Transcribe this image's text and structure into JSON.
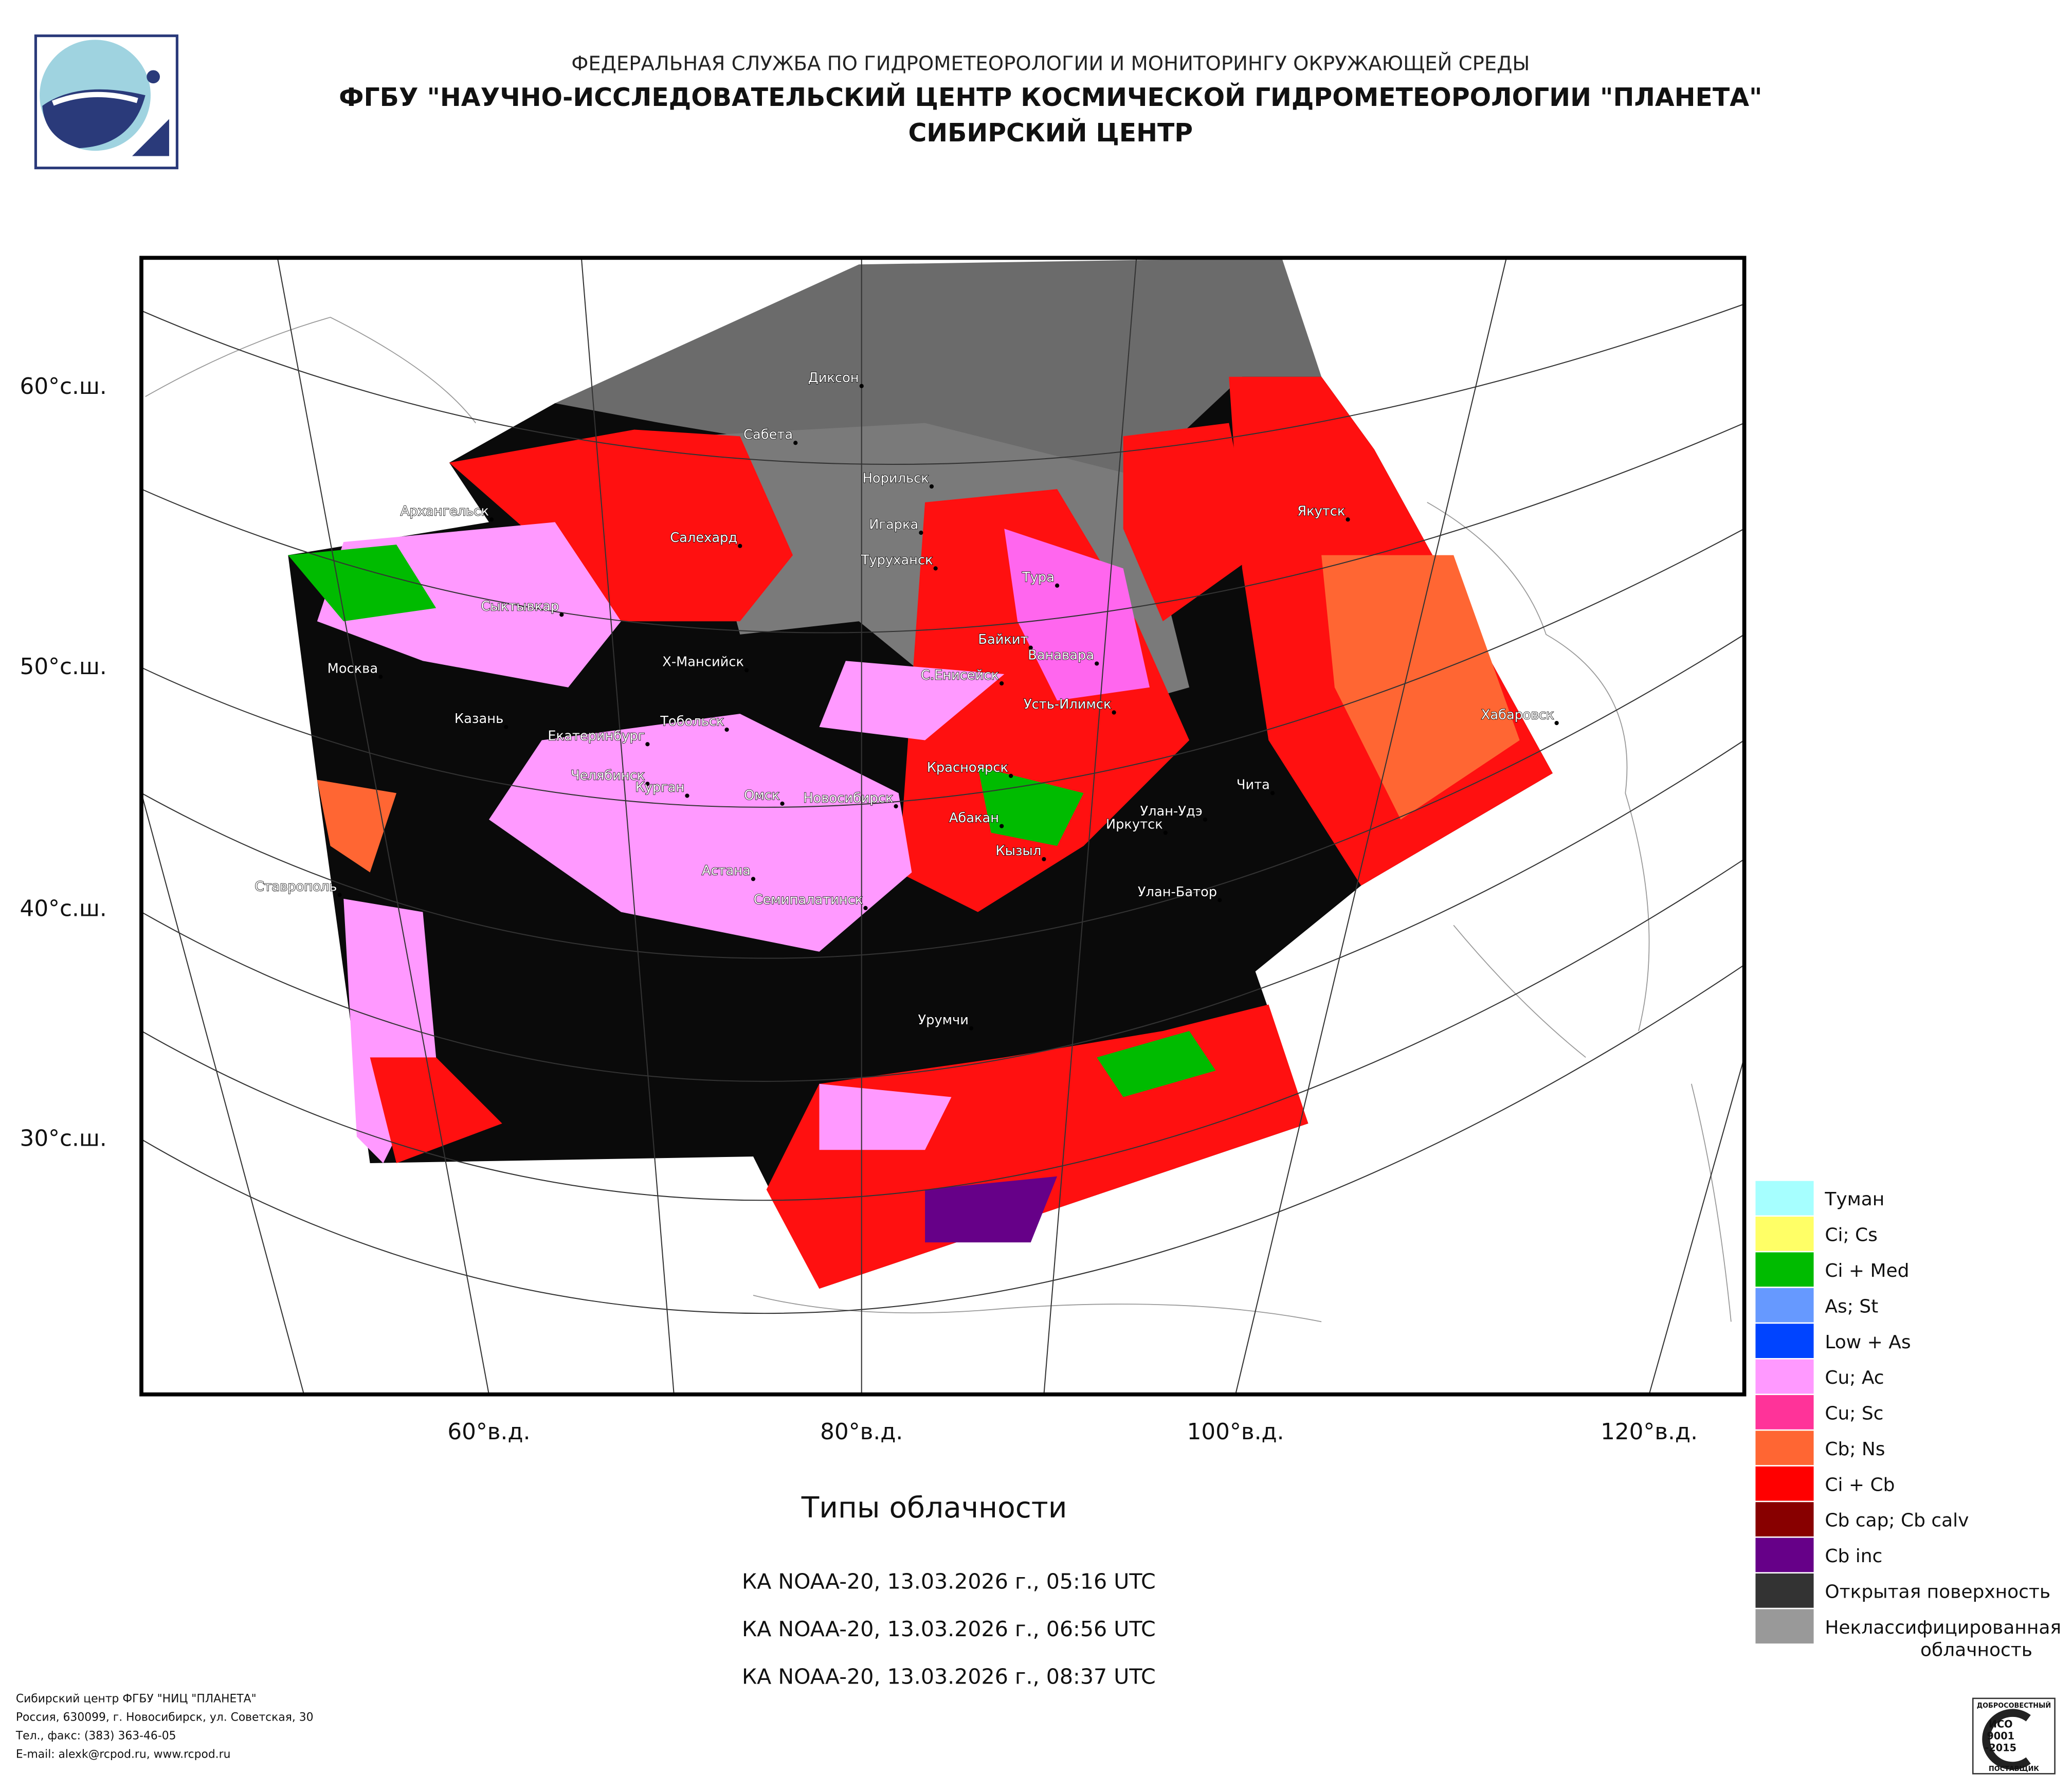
{
  "header": {
    "agency": "ФЕДЕРАЛЬНАЯ СЛУЖБА ПО ГИДРОМЕТЕОРОЛОГИИ И МОНИТОРИНГУ ОКРУЖАЮЩЕЙ СРЕДЫ",
    "institute": "ФГБУ \"НАУЧНО-ИССЛЕДОВАТЕЛЬСКИЙ ЦЕНТР КОСМИЧЕСКОЙ ГИДРОМЕТЕОРОЛОГИИ \"ПЛАНЕТА\"",
    "center": "СИБИРСКИЙ ЦЕНТР"
  },
  "map": {
    "lat_labels": [
      "60°с.ш.",
      "50°с.ш.",
      "40°с.ш.",
      "30°с.ш."
    ],
    "lon_labels": [
      "60°в.д.",
      "80°в.д.",
      "100°в.д.",
      "120°в.д."
    ],
    "cities": [
      "Диксон",
      "Сабета",
      "Норильск",
      "Архангельск",
      "Салехард",
      "Игарка",
      "Туруханск",
      "Якутск",
      "Тура",
      "Сыктывкар",
      "Байкит",
      "Ванавара",
      "Х-Мансийск",
      "С.Енисейск",
      "Москва",
      "Усть-Илимск",
      "Хабаровск",
      "Казань",
      "Тобольск",
      "Екатеринбург",
      "Красноярск",
      "Челябинск",
      "Курган",
      "Омск",
      "Чита",
      "Новосибирск",
      "Улан-Удэ",
      "Абакан",
      "Иркутск",
      "Кызыл",
      "Астана",
      "Ставрополь",
      "Семипалатинск",
      "Улан-Батор",
      "Урумчи"
    ]
  },
  "legend": [
    {
      "lines": [
        "Туман"
      ],
      "color": "#a6ffff"
    },
    {
      "lines": [
        "Ci; Cs"
      ],
      "color": "#ffff66"
    },
    {
      "lines": [
        "Ci + Med"
      ],
      "color": "#00bb00"
    },
    {
      "lines": [
        "As; St"
      ],
      "color": "#6699ff"
    },
    {
      "lines": [
        "Low + As"
      ],
      "color": "#0044ff"
    },
    {
      "lines": [
        "Cu; Ac"
      ],
      "color": "#ff99ff"
    },
    {
      "lines": [
        "Cu; Sc"
      ],
      "color": "#ff3399"
    },
    {
      "lines": [
        "Cb; Ns"
      ],
      "color": "#ff6633"
    },
    {
      "lines": [
        "Ci + Cb"
      ],
      "color": "#ff0000"
    },
    {
      "lines": [
        "Cb cap; Cb calv"
      ],
      "color": "#880000"
    },
    {
      "lines": [
        "Cb inc"
      ],
      "color": "#660088"
    },
    {
      "lines": [
        "Открытая поверхность"
      ],
      "color": "#333333"
    },
    {
      "lines": [
        "Неклассифицированная",
        "облачность"
      ],
      "color": "#999999"
    }
  ],
  "title": "Типы облачности",
  "passes": [
    "КА NOAA-20, 13.03.2026 г., 05:16 UTC",
    "КА NOAA-20, 13.03.2026 г., 06:56 UTC",
    "КА NOAA-20, 13.03.2026 г., 08:37 UTC"
  ],
  "footer": [
    "Сибирский центр ФГБУ \"НИЦ \"ПЛАНЕТА\"",
    "Россия, 630099, г. Новосибирск, ул. Советская, 30",
    "Тел., факс: (383) 363-46-05",
    "E-mail: alexk@rcpod.ru, www.rcpod.ru"
  ],
  "badge": [
    "ДОБРОСОВЕСТНЫЙ",
    "ИСО",
    "9001",
    "-2015",
    "ПОСТАВЩИК"
  ]
}
